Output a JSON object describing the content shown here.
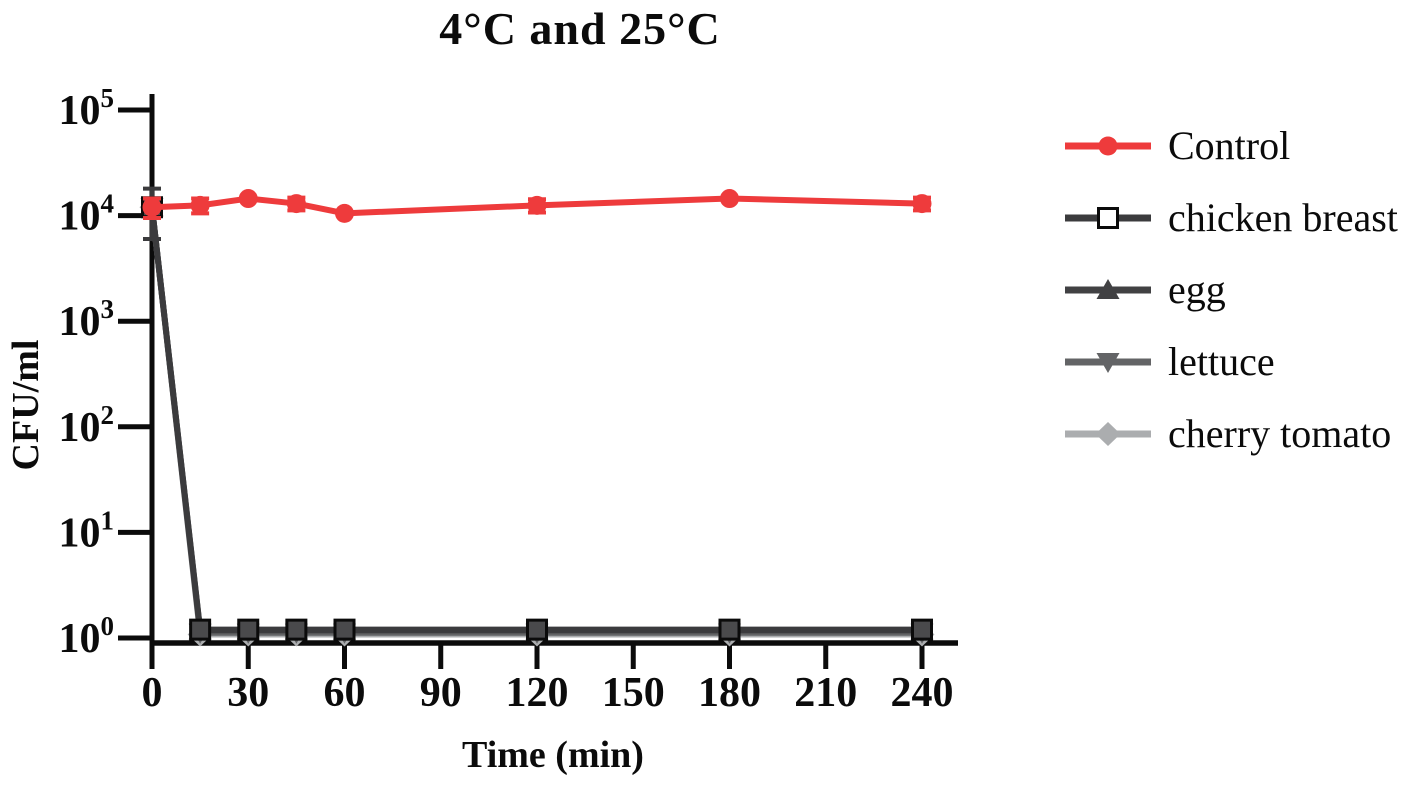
{
  "title": "4°C and 25°C",
  "axes": {
    "x_label": "Time (min)",
    "y_label": "CFU/ml"
  },
  "colors": {
    "axis": "#0b0b0b",
    "background": "#ffffff",
    "text": "#0b0b0b"
  },
  "chart_data": {
    "type": "line",
    "title": "4°C and 25°C",
    "xlabel": "Time (min)",
    "ylabel": "CFU/ml",
    "x_scale": "linear",
    "y_scale": "log10",
    "xlim": [
      0,
      240
    ],
    "ylim": [
      1,
      100000
    ],
    "x_ticks": [
      0,
      30,
      60,
      90,
      120,
      150,
      180,
      210,
      240
    ],
    "y_tick_exponents": [
      0,
      1,
      2,
      3,
      4,
      5
    ],
    "grid": false,
    "legend_position": "right",
    "x": [
      0,
      15,
      30,
      45,
      60,
      120,
      180,
      240
    ],
    "series": [
      {
        "name": "Control",
        "color": "#ee3b3c",
        "marker": "circle",
        "values": [
          12000,
          12500,
          14500,
          13000,
          10500,
          12500,
          14500,
          13000
        ],
        "err": [
          2500,
          2000,
          0,
          1800,
          0,
          1800,
          0,
          1800
        ]
      },
      {
        "name": "chicken breast",
        "color": "#3b3b3d",
        "marker": "square-open",
        "marker_fill": "#4a4a4c",
        "legend_marker_fill": "#ffffff",
        "values": [
          12000,
          1.2,
          1.2,
          1.2,
          1.2,
          1.2,
          1.2,
          1.2
        ],
        "err": [
          6000,
          0,
          0,
          0,
          0,
          0,
          0,
          0
        ]
      },
      {
        "name": "egg",
        "color": "#414143",
        "marker": "triangle-up",
        "values": [
          12000,
          1.18,
          1.18,
          1.18,
          1.18,
          1.18,
          1.18,
          1.18
        ],
        "err": [
          0,
          0,
          0,
          0,
          0,
          0,
          0,
          0
        ]
      },
      {
        "name": "lettuce",
        "color": "#636466",
        "marker": "triangle-down",
        "values": [
          12000,
          1.12,
          1.12,
          1.12,
          1.12,
          1.12,
          1.12,
          1.12
        ],
        "err": [
          0,
          0,
          0,
          0,
          0,
          0,
          0,
          0
        ]
      },
      {
        "name": "cherry tomato",
        "color": "#abadaf",
        "marker": "diamond",
        "values": [
          12000,
          1.08,
          1.08,
          1.08,
          1.08,
          1.08,
          1.08,
          1.08
        ],
        "err": [
          0,
          0,
          0,
          0,
          0,
          0,
          0,
          0
        ]
      }
    ]
  }
}
